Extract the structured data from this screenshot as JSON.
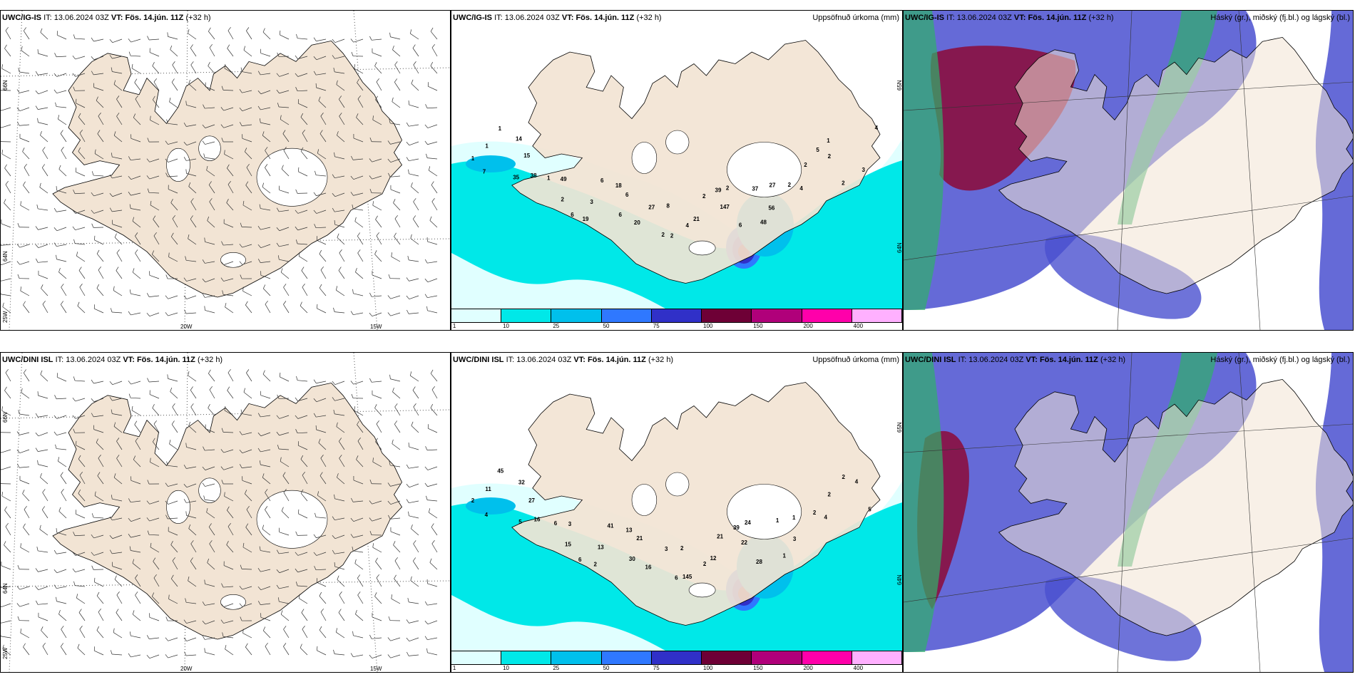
{
  "rows": [
    {
      "model": "UWC/IG-IS",
      "it_label": "IT:",
      "it_value": "13.06.2024 03Z",
      "vt_label": "VT:",
      "vt_value": "Fös. 14.jún. 11Z",
      "lead": "(+32 h)",
      "precip_numbers": [
        "1",
        "1",
        "1",
        "7",
        "14",
        "38",
        "35",
        "15",
        "2",
        "49",
        "1",
        "6",
        "6",
        "3",
        "19",
        "18",
        "20",
        "6",
        "6",
        "2",
        "8",
        "27",
        "2",
        "2",
        "21",
        "4",
        "39",
        "6",
        "147",
        "2",
        "48",
        "27",
        "37",
        "56",
        "2",
        "4",
        "2",
        "5",
        "2",
        "2",
        "1",
        "3",
        "4"
      ]
    },
    {
      "model": "UWC/DINI ISL",
      "it_label": "IT:",
      "it_value": "13.06.2024 03Z",
      "vt_label": "VT:",
      "vt_value": "Fös. 14.jún. 11Z",
      "lead": "(+32 h)",
      "precip_numbers": [
        "2",
        "45",
        "11",
        "4",
        "32",
        "16",
        "5",
        "27",
        "15",
        "3",
        "6",
        "6",
        "41",
        "13",
        "2",
        "13",
        "16",
        "30",
        "21",
        "6",
        "2",
        "3",
        "145",
        "21",
        "12",
        "2",
        "39",
        "28",
        "22",
        "24",
        "1",
        "1",
        "1",
        "3",
        "2",
        "4",
        "2",
        "2",
        "5",
        "4"
      ]
    }
  ],
  "precip_panel": {
    "title": "Uppsöfnuð úrkoma (mm)",
    "colorbar": {
      "colors": [
        "#e0ffff",
        "#00e8e8",
        "#00c0ec",
        "#2f78ff",
        "#3030c8",
        "#6e0036",
        "#b0007a",
        "#ff00aa",
        "#ffb0ff"
      ],
      "ticks": [
        "1",
        "10",
        "25",
        "50",
        "75",
        "100",
        "150",
        "200",
        "400"
      ]
    }
  },
  "cloud_panel": {
    "title": "Háský (gr.), miðský (fj.bl.) og lágský (bl.)",
    "colors": {
      "high": "#2fb06a",
      "mid": "#8a1040",
      "low": "#4a50d0"
    }
  },
  "wind_panel": {
    "lat_labels": [
      "66N",
      "64N"
    ],
    "lon_labels": [
      "25W",
      "20W",
      "15W"
    ]
  },
  "precip_lat_labels": [
    "65N",
    "64N"
  ],
  "colors": {
    "land": "#f2e4d4",
    "ocean": "#ffffff",
    "coast": "#000000"
  }
}
